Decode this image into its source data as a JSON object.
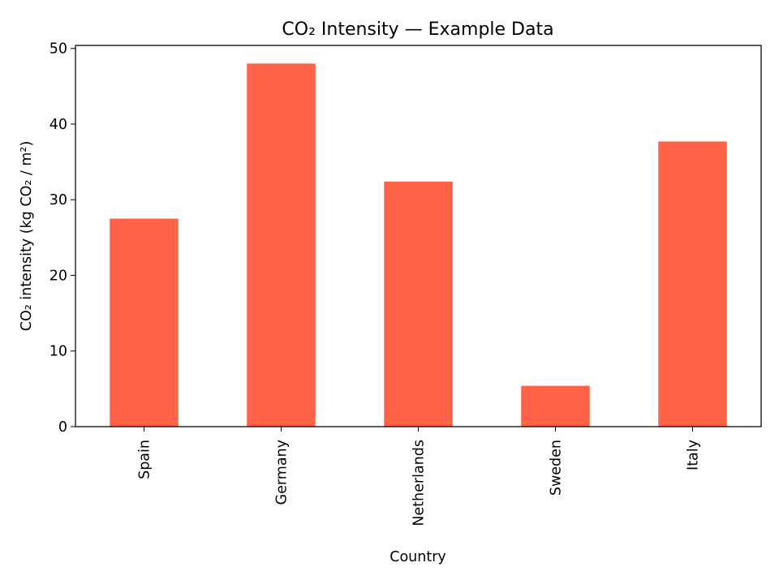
{
  "chart_data": {
    "type": "bar",
    "title": "CO₂ Intensity — Example Data",
    "xlabel": "Country",
    "ylabel": "CO₂ intensity (kg CO₂ / m²)",
    "categories": [
      "Spain",
      "Germany",
      "Netherlands",
      "Sweden",
      "Italy"
    ],
    "values": [
      27.5,
      48.0,
      32.4,
      5.4,
      37.7
    ],
    "ylim": [
      0,
      50.4
    ],
    "yticks": [
      0,
      10,
      20,
      30,
      40,
      50
    ],
    "grid": false,
    "bar_color": "#ff6347"
  }
}
